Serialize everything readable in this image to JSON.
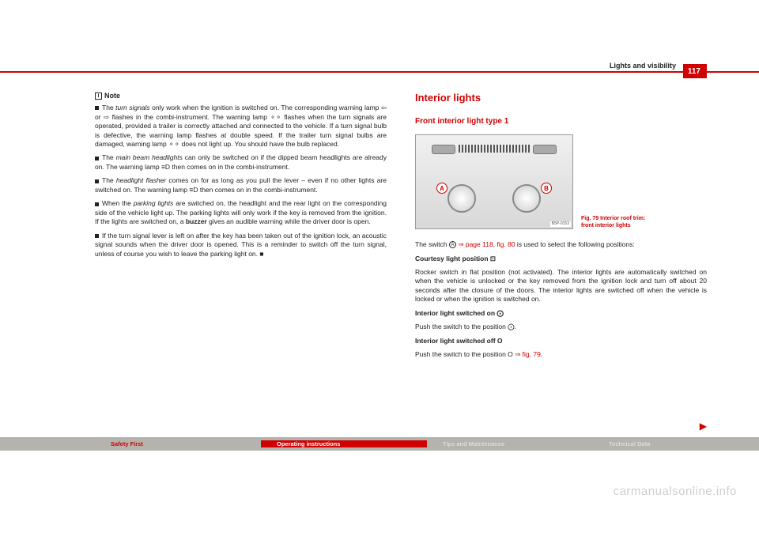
{
  "header": {
    "section": "Lights and visibility",
    "page": "117"
  },
  "left": {
    "note_label": "Note",
    "p1a": "The ",
    "p1b": "turn signals",
    "p1c": " only work when the ignition is switched on. The corresponding warning lamp ⇦ or ⇨ flashes in the combi-instrument. The warning lamp ⚬⚬ flashes when the turn signals are operated, provided a trailer is correctly attached and connected to the vehicle. If a turn signal bulb is defective, the warning lamp flashes at double speed. If the trailer turn signal bulbs are damaged, warning lamp ⚬⚬ does not light up. You should have the bulb replaced.",
    "p2a": "The ",
    "p2b": "main beam headlights",
    "p2c": " can only be switched on if the dipped beam headlights are already on. The warning lamp ≡D then comes on in the combi-instrument.",
    "p3a": "The ",
    "p3b": "headlight flasher",
    "p3c": " comes on for as long as you pull the lever – even if no other lights are switched on. The warning lamp ≡D then comes on in the combi-instrument.",
    "p4a": "When the ",
    "p4b": "parking lights",
    "p4c": " are switched on, the headlight and the rear light on the corresponding side of the vehicle light up. The parking lights will only work if the key is removed from the ignition. If the lights are switched on, a ",
    "p4d": "buzzer",
    "p4e": " gives an audible warning while the driver door is open.",
    "p5": "If the turn signal lever is left on after the key has been taken out of the ignition lock, an acoustic signal sounds when the driver door is opened. This is a reminder to switch off the turn signal, unless of course you wish to leave the parking light on. "
  },
  "right": {
    "h1": "Interior lights",
    "h2": "Front interior light type 1",
    "labelA": "A",
    "labelB": "B",
    "figcode": "B5P-0153",
    "figcap": "Fig. 79   Interior roof trim: front interior lights",
    "p1a": "The switch ",
    "p1b": "A",
    "p1c": " ⇒ page 118, fig. 80",
    "p1d": " is used to select the following positions:",
    "p2h": "Courtesy light position ⊡",
    "p2": "Rocker switch in flat position (not activated). The interior lights are automatically switched on when the vehicle is unlocked or the key removed from the ignition lock and turn off about 20 seconds after the closure of the doors. The interior lights are switched off when the vehicle is locked or when the ignition is switched on.",
    "p3h": "Interior light switched on ⨀",
    "p3": "Push the switch to the position ⨀.",
    "p4h": "Interior light switched off O",
    "p4a": "Push the switch to the position O ",
    "p4b": "⇒ fig. 79",
    "p4c": "."
  },
  "footer": {
    "safety": "Safety First",
    "oper": "Operating instructions",
    "tips": "Tips and Maintenance",
    "tech": "Technical Data"
  },
  "watermark": "carmanualsonline.info"
}
